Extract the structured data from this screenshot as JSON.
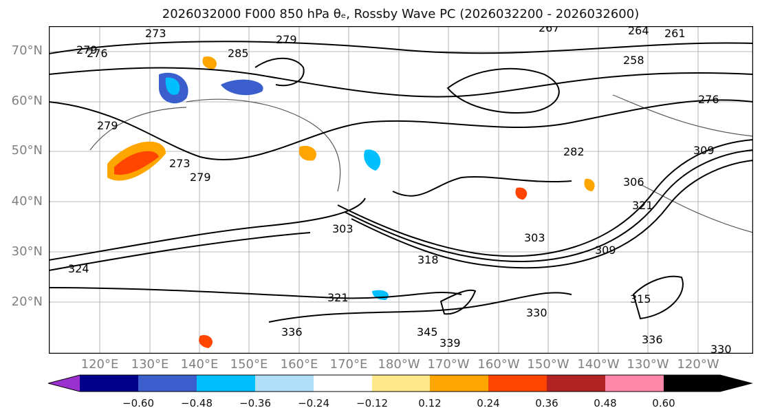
{
  "title": "2026032000 F000 850 hPa θₑ, Rossby Wave PC (2026032200 - 2026032600)",
  "lat_labels": [
    "70°N",
    "60°N",
    "50°N",
    "40°N",
    "30°N",
    "20°N"
  ],
  "lon_labels": [
    "120°E",
    "130°E",
    "140°E",
    "150°E",
    "160°E",
    "170°E",
    "180°W",
    "170°W",
    "160°W",
    "150°W",
    "140°W",
    "130°W",
    "120°W"
  ],
  "contour_labels": [
    "273",
    "279",
    "276",
    "285",
    "279",
    "267",
    "264",
    "261",
    "258",
    "279",
    "282",
    "276",
    "273",
    "279",
    "309",
    "306",
    "303",
    "321",
    "303",
    "318",
    "309",
    "324",
    "321",
    "315",
    "339",
    "345",
    "336",
    "330",
    "336",
    "330"
  ],
  "colorbar": {
    "ticks": [
      "−0.60",
      "−0.48",
      "−0.36",
      "−0.24",
      "−0.12",
      "0.12",
      "0.24",
      "0.36",
      "0.48",
      "0.60"
    ],
    "colors": [
      "#9b30d0",
      "#00008b",
      "#3a5fcd",
      "#00bfff",
      "#afe0f8",
      "#ffffff",
      "#ffe88a",
      "#ffa500",
      "#ff4500",
      "#b22222",
      "#ff88aa"
    ]
  }
}
